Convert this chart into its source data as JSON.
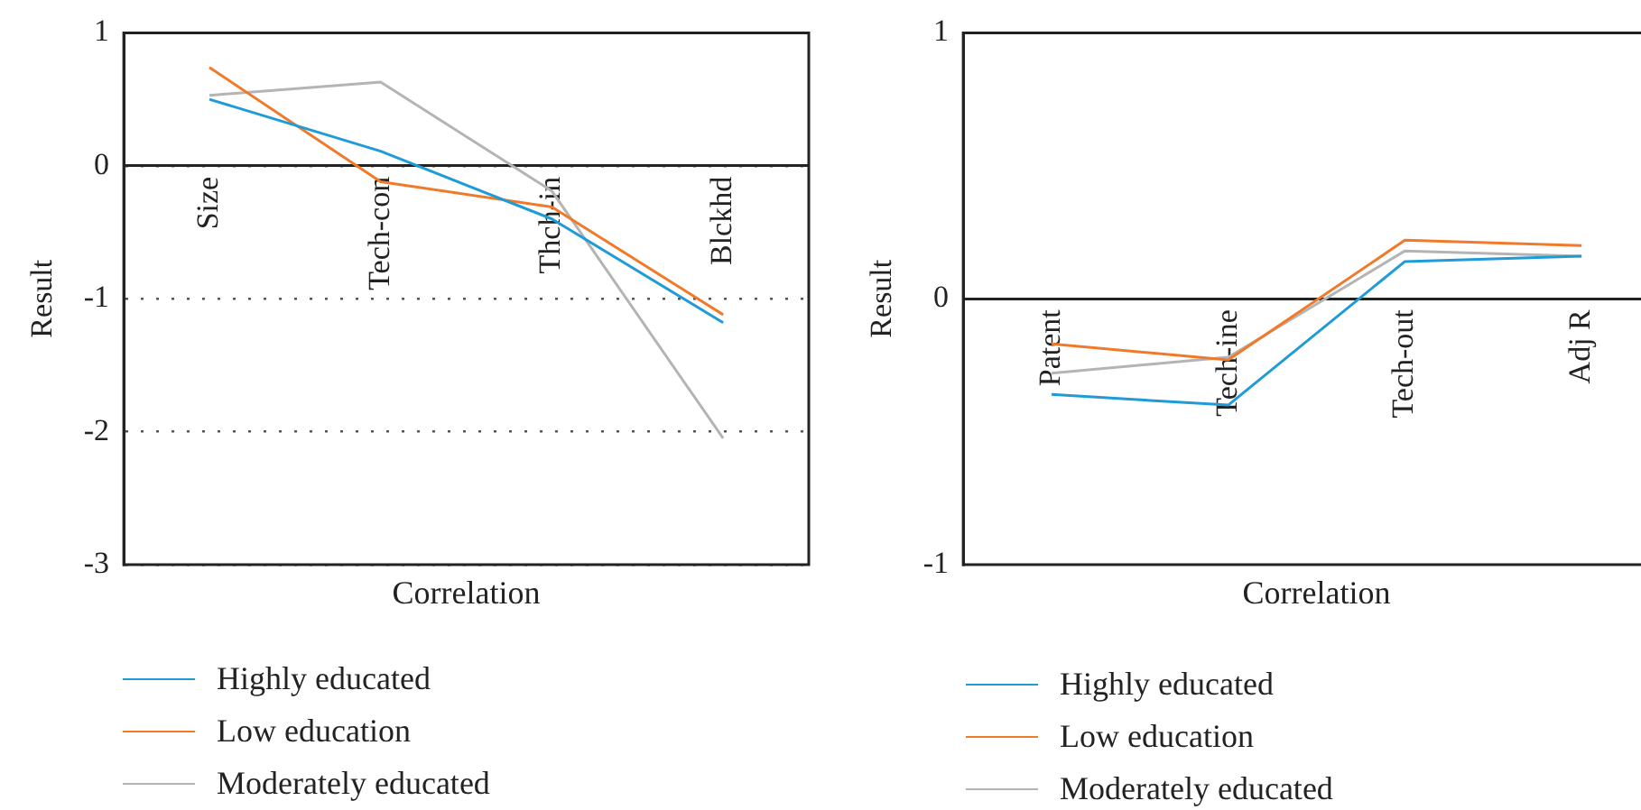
{
  "chart_data": [
    {
      "type": "line",
      "xlabel": "Correlation",
      "ylabel": "Result",
      "categories": [
        "Size",
        "Tech-con",
        "Thch-in",
        "Blckhd"
      ],
      "series": [
        {
          "name": "Highly educated",
          "color": "#1f9bd7",
          "values": [
            0.5,
            0.11,
            -0.4,
            -1.18
          ]
        },
        {
          "name": "Low education",
          "color": "#f07a2a",
          "values": [
            0.74,
            -0.12,
            -0.31,
            -1.12
          ]
        },
        {
          "name": "Moderately educated",
          "color": "#b4b4b4",
          "values": [
            0.53,
            0.63,
            -0.19,
            -2.05
          ]
        }
      ],
      "ylim": [
        -3,
        1
      ],
      "yticks": [
        -3,
        -2,
        -1,
        0,
        1
      ],
      "grid": "y",
      "legend": "bottom",
      "marker": "none",
      "line_style": "solid"
    },
    {
      "type": "line",
      "xlabel": "Correlation",
      "ylabel": "Result",
      "categories": [
        "Patent",
        "Tech-ine",
        "Tech-out",
        "Adj R"
      ],
      "series": [
        {
          "name": "Highly educated",
          "color": "#1f9bd7",
          "values": [
            -0.36,
            -0.4,
            0.14,
            0.16
          ]
        },
        {
          "name": "Low education",
          "color": "#f07a2a",
          "values": [
            -0.17,
            -0.23,
            0.22,
            0.2
          ]
        },
        {
          "name": "Moderately educated",
          "color": "#b4b4b4",
          "values": [
            -0.28,
            -0.22,
            0.18,
            0.16
          ]
        }
      ],
      "ylim": [
        -1,
        1
      ],
      "yticks": [
        -1,
        0,
        1
      ],
      "grid": false,
      "legend": "bottom",
      "marker": "none",
      "line_style": "solid"
    }
  ]
}
